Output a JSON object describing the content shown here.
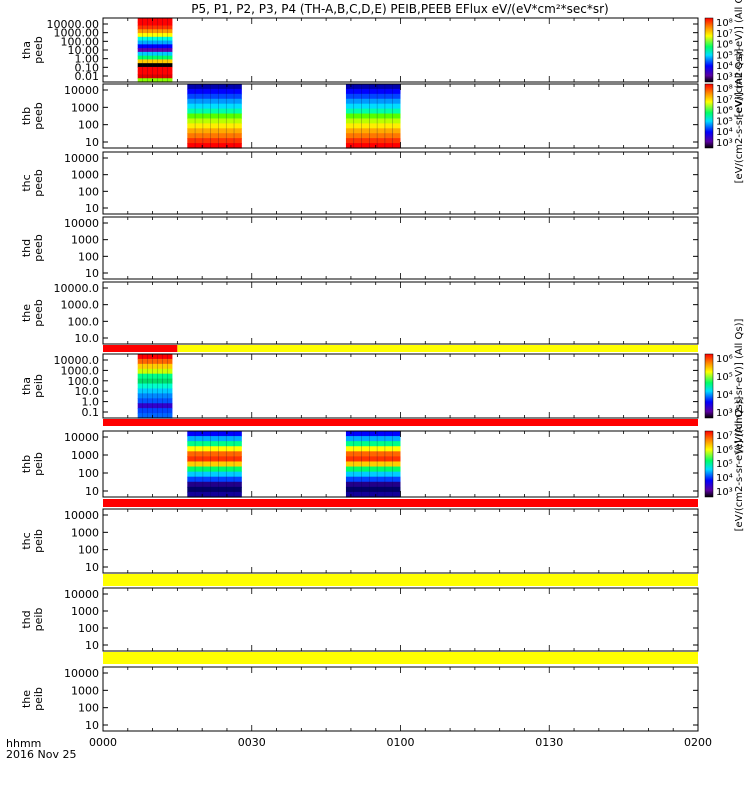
{
  "title": "P5, P1, P2, P3, P4 (TH-A,B,C,D,E) PEIB,PEEB EFlux eV/(eV*cm²*sec*sr)",
  "footer": {
    "time_label": "hhmm",
    "date_label": "2016 Nov 25"
  },
  "x_ticks": [
    "0000",
    "0030",
    "0100",
    "0130",
    "0200"
  ],
  "colors": {
    "red": "#ff0000",
    "yellow": "#ffff00",
    "black": "#000000"
  },
  "colorbars": [
    {
      "unit_label": "[eV/(cm2-s-sr-eV)] (All Qs)]",
      "tick_labels": [
        "10⁸",
        "10⁷",
        "10⁶",
        "10⁵",
        "10⁴",
        "10³"
      ]
    },
    {
      "unit_label": "[eV/(cm2-s-sr-eV)] (All Qs)]",
      "tick_labels": [
        "10⁸",
        "10⁷",
        "10⁶",
        "10⁵",
        "10⁴",
        "10³"
      ]
    },
    {
      "unit_label": "[eV/(cm2-s-sr-eV)] (All Qs)]",
      "tick_labels": [
        "10⁶",
        "10⁵",
        "10⁴",
        "10³"
      ]
    },
    {
      "unit_label": "[eV/(cm2-s-sr-eV)] (All Qs)]",
      "tick_labels": [
        "10⁷",
        "10⁶",
        "10⁵",
        "10⁴",
        "10³"
      ]
    }
  ],
  "chart_data": {
    "type": "heatmap",
    "x_range": [
      "0000",
      "0200"
    ],
    "panels": [
      {
        "probe": "tha",
        "instrument": "peeb",
        "ytick_labels": [
          "10000.00",
          "1000.00",
          "100.00",
          "10.00",
          "1.00",
          "0.10",
          "0.01"
        ],
        "blocks": [
          {
            "start": "0007",
            "end": "0014",
            "profile": "a1"
          }
        ],
        "status_bar_below": null
      },
      {
        "probe": "thb",
        "instrument": "peeb",
        "ytick_labels": [
          "10000",
          "1000",
          "100",
          "10"
        ],
        "blocks": [
          {
            "start": "0017",
            "end": "0028",
            "profile": "b1"
          },
          {
            "start": "0049",
            "end": "0100",
            "profile": "b1"
          }
        ],
        "status_bar_below": null
      },
      {
        "probe": "thc",
        "instrument": "peeb",
        "ytick_labels": [
          "10000",
          "1000",
          "100",
          "10"
        ],
        "blocks": [],
        "status_bar_below": null
      },
      {
        "probe": "thd",
        "instrument": "peeb",
        "ytick_labels": [
          "10000",
          "1000",
          "100",
          "10"
        ],
        "blocks": [],
        "status_bar_below": null
      },
      {
        "probe": "the",
        "instrument": "peeb",
        "ytick_labels": [
          "10000.0",
          "1000.0",
          "100.0",
          "10.0"
        ],
        "blocks": [],
        "status_bar_below": [
          {
            "start": "0000",
            "end": "0015",
            "color": "red"
          },
          {
            "start": "0015",
            "end": "0200",
            "color": "yellow"
          }
        ]
      },
      {
        "probe": "tha",
        "instrument": "peib",
        "ytick_labels": [
          "10000.0",
          "1000.0",
          "100.0",
          "10.0",
          "1.0",
          "0.1"
        ],
        "blocks": [
          {
            "start": "0007",
            "end": "0014",
            "profile": "a2"
          }
        ],
        "status_bar_below": [
          {
            "start": "0000",
            "end": "0200",
            "color": "red"
          }
        ]
      },
      {
        "probe": "thb",
        "instrument": "peib",
        "ytick_labels": [
          "10000",
          "1000",
          "100",
          "10"
        ],
        "blocks": [
          {
            "start": "0017",
            "end": "0028",
            "profile": "b2"
          },
          {
            "start": "0049",
            "end": "0100",
            "profile": "b2"
          }
        ],
        "status_bar_below": [
          {
            "start": "0000",
            "end": "0200",
            "color": "red"
          }
        ]
      },
      {
        "probe": "thc",
        "instrument": "peib",
        "ytick_labels": [
          "10000",
          "1000",
          "100",
          "10"
        ],
        "blocks": [],
        "status_bar_below": [
          {
            "start": "0000",
            "end": "0200",
            "color": "yellow"
          }
        ]
      },
      {
        "probe": "thd",
        "instrument": "peib",
        "ytick_labels": [
          "10000",
          "1000",
          "100",
          "10"
        ],
        "blocks": [],
        "status_bar_below": [
          {
            "start": "0000",
            "end": "0200",
            "color": "yellow"
          }
        ]
      },
      {
        "probe": "the",
        "instrument": "peib",
        "ytick_labels": [
          "10000",
          "1000",
          "100",
          "10"
        ],
        "blocks": [],
        "status_bar_below": null
      }
    ]
  }
}
